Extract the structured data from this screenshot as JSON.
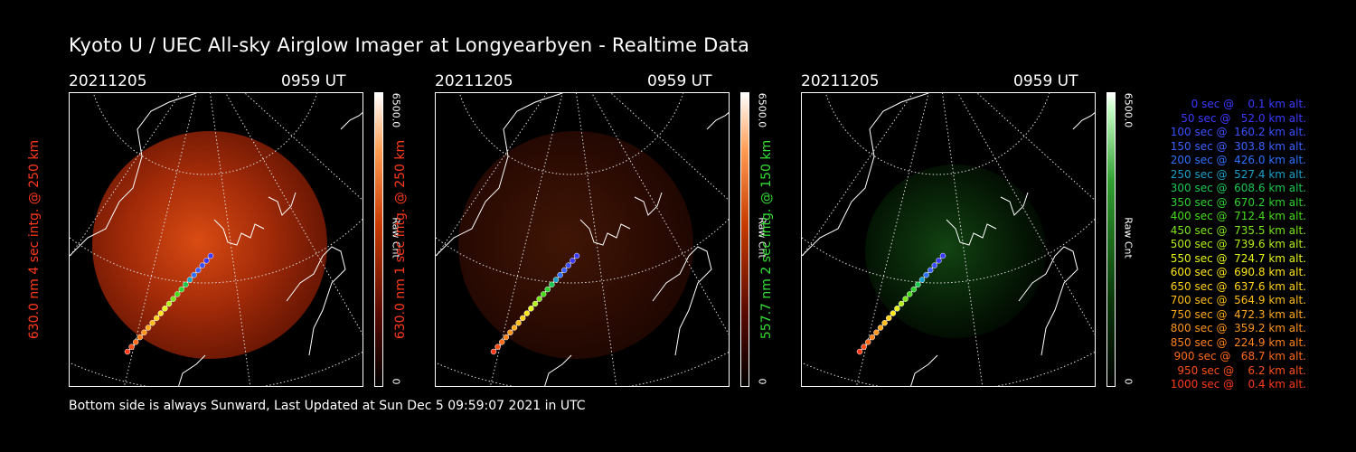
{
  "title": "Kyoto U / UEC All-sky Airglow Imager at Longyearbyen - Realtime Data",
  "footer": "Bottom side is always Sunward, Last Updated at Sun Dec  5 09:59:07 2021 in UTC",
  "panels": [
    {
      "date": "20211205",
      "time": "0959 UT",
      "side_label": "630.0 nm 4 sec intg. @ 250 km",
      "label_color": "#ff3a1a",
      "cbar_max": "6500.0",
      "cbar_unit": "Raw Cnt",
      "cbar_min": "0",
      "intensity": 0.95,
      "theme": "red"
    },
    {
      "date": "20211205",
      "time": "0959 UT",
      "side_label": "630.0 nm 1 sec intg. @ 250 km",
      "label_color": "#ff3a1a",
      "cbar_max": "6500.0",
      "cbar_unit": "Raw Cnt",
      "cbar_min": "0",
      "intensity": 0.28,
      "theme": "red"
    },
    {
      "date": "20211205",
      "time": "0959 UT",
      "side_label": "557.7 nm 2 sec intg. @ 150 km",
      "label_color": "#33e033",
      "cbar_max": "6500.0",
      "cbar_unit": "Raw Cnt",
      "cbar_min": "0",
      "intensity": 0.45,
      "theme": "green"
    }
  ],
  "legend": [
    {
      "text": "   0 sec @    0.1 km alt.",
      "color": "#3a3aff"
    },
    {
      "text": "  50 sec @   52.0 km alt.",
      "color": "#3a3aff"
    },
    {
      "text": " 100 sec @  160.2 km alt.",
      "color": "#3a50ff"
    },
    {
      "text": " 150 sec @  303.8 km alt.",
      "color": "#3a60ff"
    },
    {
      "text": " 200 sec @  426.0 km alt.",
      "color": "#2e72ff"
    },
    {
      "text": " 250 sec @  527.4 km alt.",
      "color": "#1aa0c8"
    },
    {
      "text": " 300 sec @  608.6 km alt.",
      "color": "#1ac850"
    },
    {
      "text": " 350 sec @  670.2 km alt.",
      "color": "#2ed22e"
    },
    {
      "text": " 400 sec @  712.4 km alt.",
      "color": "#46dc1a"
    },
    {
      "text": " 450 sec @  735.5 km alt.",
      "color": "#7ae61a"
    },
    {
      "text": " 500 sec @  739.6 km alt.",
      "color": "#b4f01a"
    },
    {
      "text": " 550 sec @  724.7 km alt.",
      "color": "#e6f51a"
    },
    {
      "text": " 600 sec @  690.8 km alt.",
      "color": "#ffe61a"
    },
    {
      "text": " 650 sec @  637.6 km alt.",
      "color": "#ffd21a"
    },
    {
      "text": " 700 sec @  564.9 km alt.",
      "color": "#ffbe1a"
    },
    {
      "text": " 750 sec @  472.3 km alt.",
      "color": "#ffa81a"
    },
    {
      "text": " 800 sec @  359.2 km alt.",
      "color": "#ff961a"
    },
    {
      "text": " 850 sec @  224.9 km alt.",
      "color": "#ff821a"
    },
    {
      "text": " 900 sec @   68.7 km alt.",
      "color": "#ff6a1a"
    },
    {
      "text": " 950 sec @    6.2 km alt.",
      "color": "#ff501a"
    },
    {
      "text": "1000 sec @    0.4 km alt.",
      "color": "#ff3a1a"
    }
  ]
}
